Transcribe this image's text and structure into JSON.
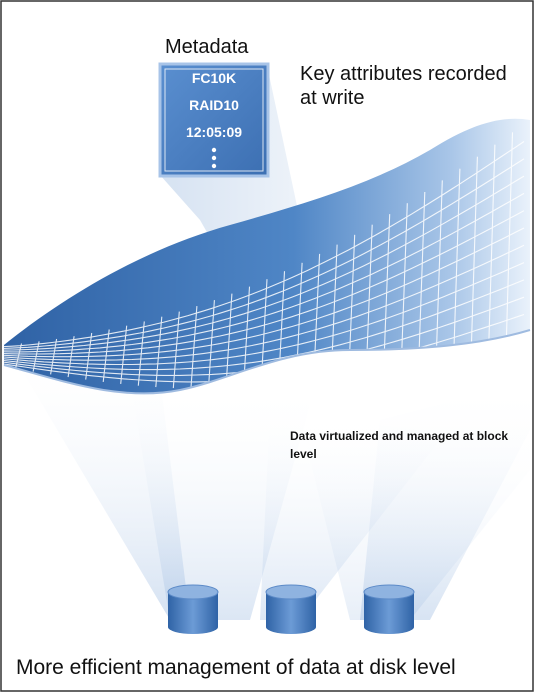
{
  "metadata": {
    "title": "Metadata",
    "entries": [
      "FC10K",
      "RAID10",
      "12:05:09"
    ]
  },
  "annotations": {
    "key_attributes": "Key attributes recorded at write",
    "surface_label": "Data virtualized and managed at block level"
  },
  "caption": "More efficient management of data at disk level",
  "icons": [
    "ellipsis-icon",
    "disk-icon"
  ],
  "colors": {
    "surface_dark": "#2f62a5",
    "surface_light": "#cfe0f2",
    "metadata_box": "#4f82c4",
    "disk": "#3d73b7",
    "border": "#333333"
  }
}
